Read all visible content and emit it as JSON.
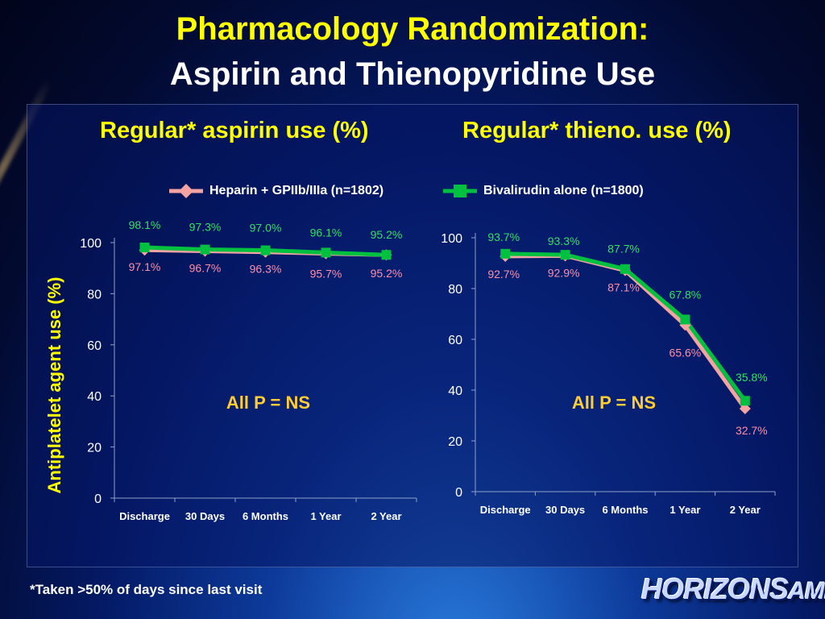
{
  "slide": {
    "title_line1": "Pharmacology Randomization:",
    "title_line2": "Aspirin and Thienopyridine Use",
    "footnote": "*Taken >50% of days since last visit",
    "logo_main": "HORIZONS",
    "logo_suffix": "AMI"
  },
  "legend": {
    "items": [
      {
        "label": "Heparin + GPIIb/IIIa (n=1802)",
        "color": "#f4a3a3",
        "marker": "diamond"
      },
      {
        "label": "Bivalirudin alone (n=1800)",
        "color": "#00c040",
        "marker": "square"
      }
    ]
  },
  "colors": {
    "heparin": "#f4a3a3",
    "heparin_label": "#ff8fa8",
    "bival": "#00c040",
    "bival_label": "#33e060",
    "annotation": "#ffcc33"
  },
  "chart_data": [
    {
      "type": "line",
      "title": "Regular* aspirin use (%)",
      "ylabel": "Antiplatelet agent use (%)",
      "categories": [
        "Discharge",
        "30 Days",
        "6 Months",
        "1 Year",
        "2 Year"
      ],
      "ylim": [
        0,
        100
      ],
      "yticks": [
        0,
        20,
        40,
        60,
        80,
        100
      ],
      "series": [
        {
          "name": "Heparin + GPIIb/IIIa (n=1802)",
          "values": [
            97.1,
            96.7,
            96.3,
            95.7,
            95.2
          ],
          "labels": [
            "97.1%",
            "96.7%",
            "96.3%",
            "95.7%",
            "95.2%"
          ]
        },
        {
          "name": "Bivalirudin alone (n=1800)",
          "values": [
            98.1,
            97.3,
            97.0,
            96.1,
            95.2
          ],
          "labels": [
            "98.1%",
            "97.3%",
            "97.0%",
            "96.1%",
            "95.2%"
          ]
        }
      ],
      "annotation": "All P = NS"
    },
    {
      "type": "line",
      "title": "Regular* thieno. use (%)",
      "categories": [
        "Discharge",
        "30 Days",
        "6 Months",
        "1 Year",
        "2 Year"
      ],
      "ylim": [
        0,
        100
      ],
      "yticks": [
        0,
        20,
        40,
        60,
        80,
        100
      ],
      "series": [
        {
          "name": "Heparin + GPIIb/IIIa (n=1802)",
          "values": [
            92.7,
            92.9,
            87.1,
            65.6,
            32.7
          ],
          "labels": [
            "92.7%",
            "92.9%",
            "87.1%",
            "65.6%",
            "32.7%"
          ]
        },
        {
          "name": "Bivalirudin alone (n=1800)",
          "values": [
            93.7,
            93.3,
            87.7,
            67.8,
            35.8
          ],
          "labels": [
            "93.7%",
            "93.3%",
            "87.7%",
            "67.8%",
            "35.8%"
          ]
        }
      ],
      "annotation": "All P = NS"
    }
  ]
}
